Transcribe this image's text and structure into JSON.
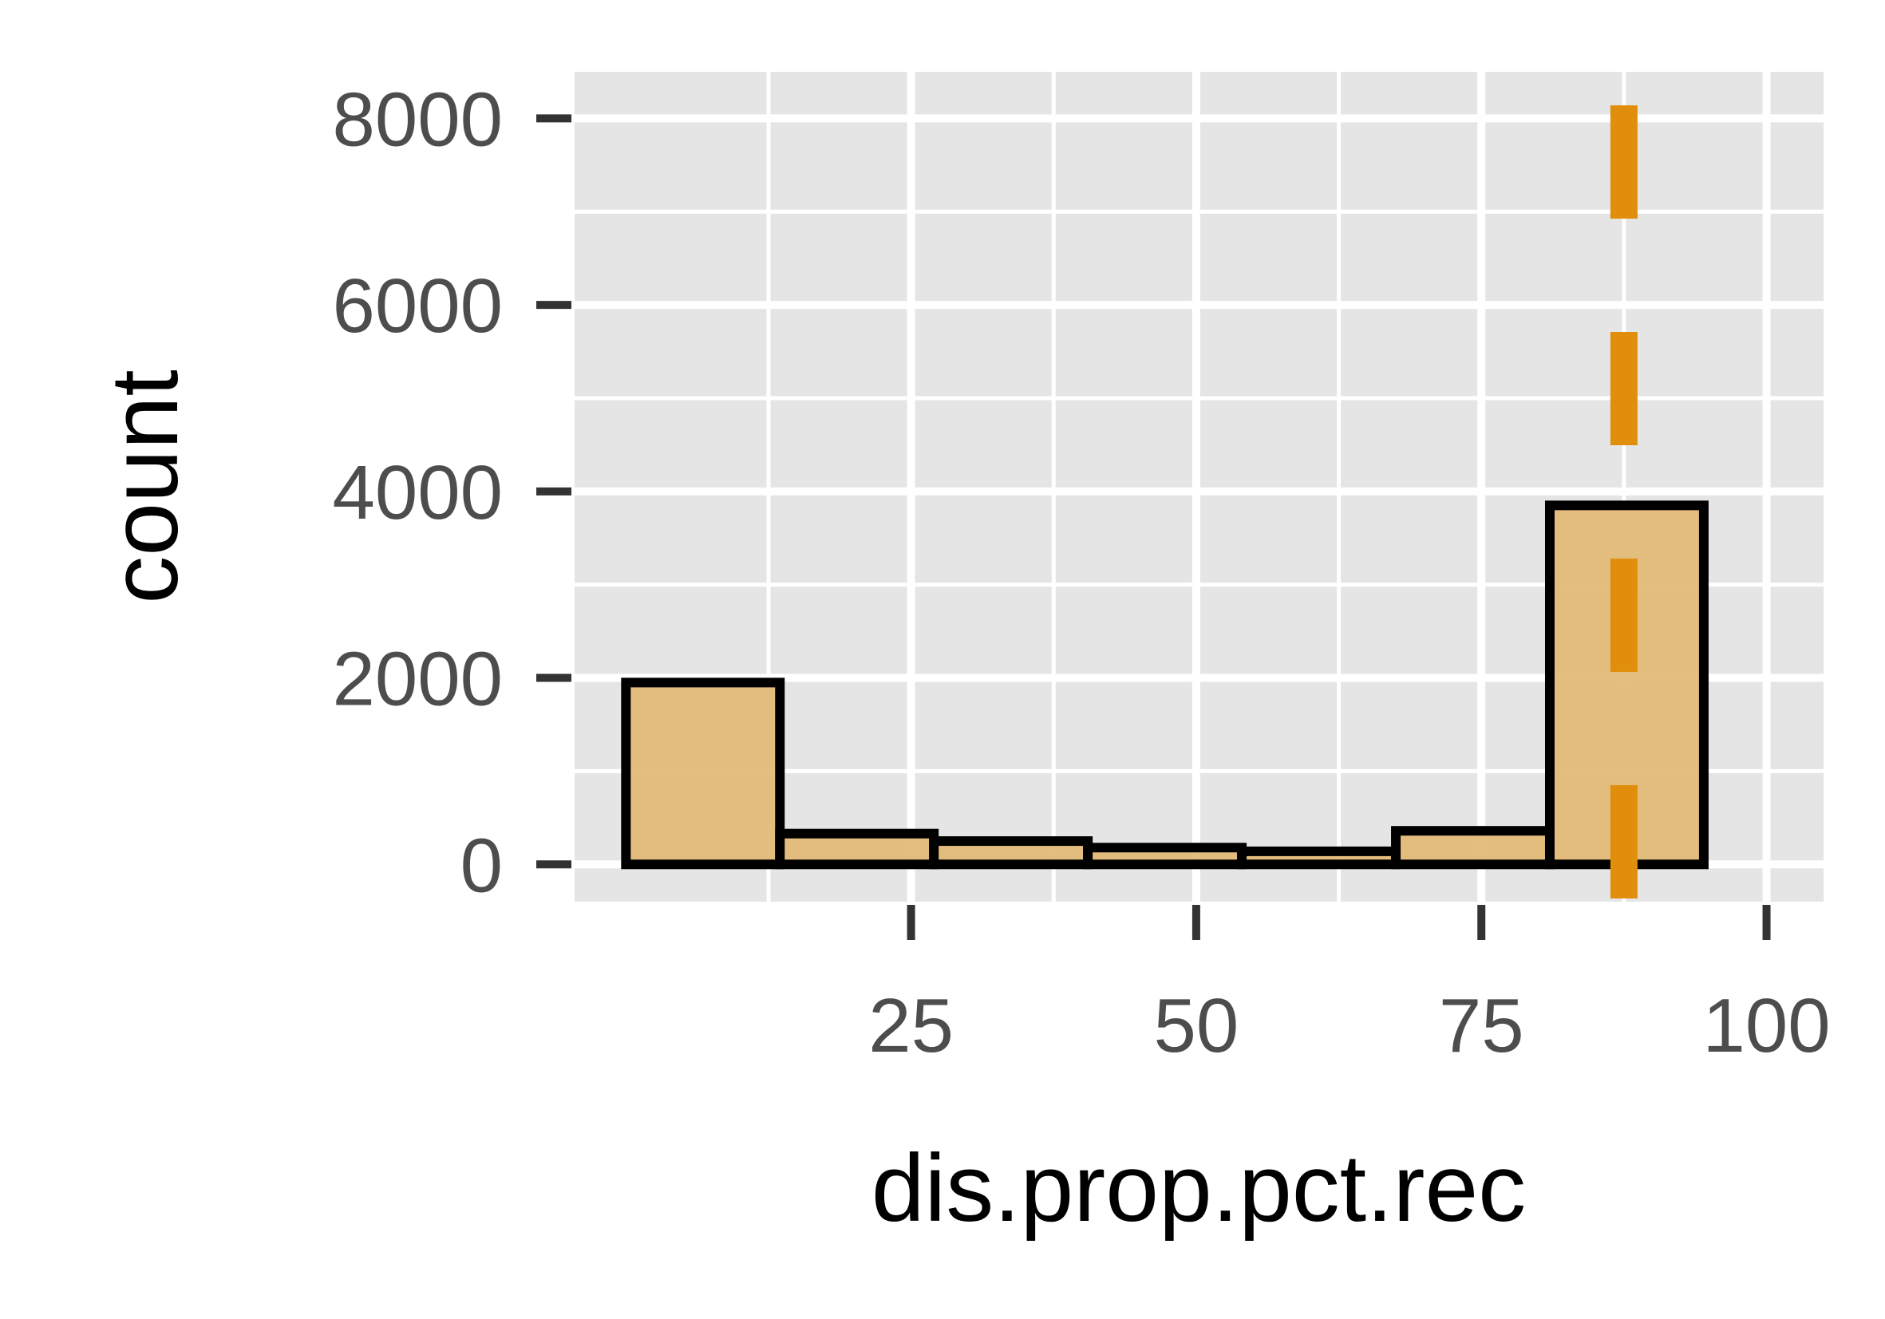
{
  "chart_data": {
    "type": "bar",
    "xlabel": "dis.prop.pct.rec",
    "ylabel": "count",
    "xlim": [
      -4.5,
      105
    ],
    "ylim": [
      -400,
      8500
    ],
    "x_ticks": [
      25,
      50,
      75,
      100
    ],
    "y_ticks": [
      0,
      2000,
      4000,
      6000,
      8000
    ],
    "grid": true,
    "bin_width": 13.5,
    "bins": [
      {
        "x_start": 0.0,
        "x_end": 13.5,
        "count": 1950
      },
      {
        "x_start": 13.5,
        "x_end": 27.0,
        "count": 330
      },
      {
        "x_start": 27.0,
        "x_end": 40.5,
        "count": 250
      },
      {
        "x_start": 40.5,
        "x_end": 54.0,
        "count": 180
      },
      {
        "x_start": 54.0,
        "x_end": 67.5,
        "count": 140
      },
      {
        "x_start": 67.5,
        "x_end": 81.0,
        "count": 360
      },
      {
        "x_start": 81.0,
        "x_end": 94.5,
        "count": 3850
      }
    ],
    "reference_line": {
      "x": 87.5,
      "style": "dashed"
    },
    "colors": {
      "bar_fill": "#e3bb78",
      "bar_stroke": "#000000",
      "reference_line": "#e08e0b",
      "panel_background": "#e5e5e5",
      "grid": "#ffffff"
    }
  }
}
